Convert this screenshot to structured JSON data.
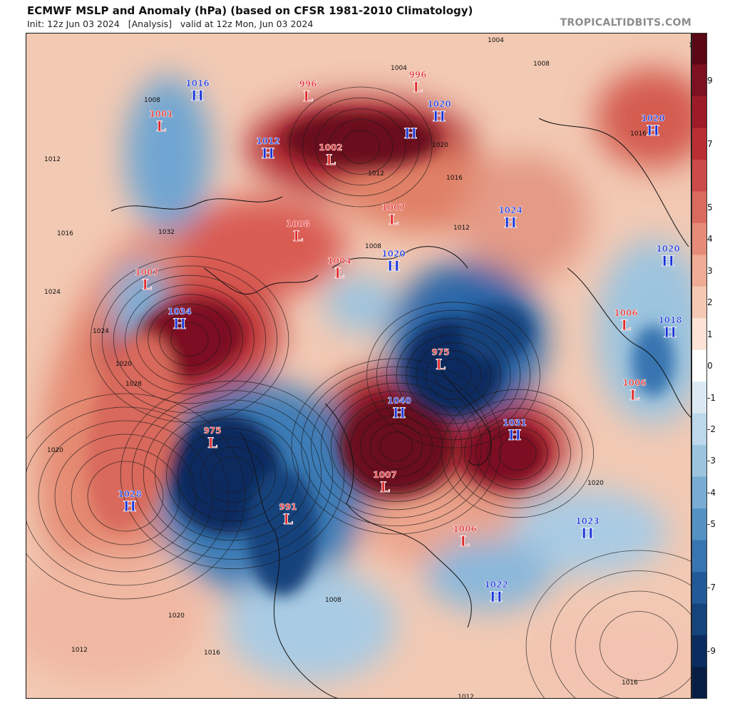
{
  "header": {
    "title": "ECMWF MSLP and Anomaly (hPa) (based on CFSR 1981-2010 Climatology)",
    "subtitle": "Init: 12z Jun 03 2024   [Analysis]   valid at 12z Mon, Jun 03 2024",
    "credit": "TROPICALTIDBITS.COM"
  },
  "colorbar": {
    "labels": [
      "9",
      "7",
      "5",
      "3",
      "1",
      "-1",
      "-3",
      "-5",
      "-7",
      "-9",
      "0",
      "2",
      "4",
      "-2",
      "-4"
    ],
    "ticks": [
      9,
      8,
      7,
      6,
      5,
      4,
      3,
      2,
      1,
      0,
      -1,
      -2,
      -3,
      -4,
      -5,
      -6,
      -7,
      -8,
      -9
    ],
    "tick_labels": [
      "9",
      "",
      "7",
      "",
      "5",
      "4",
      "3",
      "2",
      "1",
      "0",
      "-1",
      "-2",
      "-3",
      "-4",
      "-5",
      "",
      "-7",
      "",
      "-9"
    ],
    "colors": {
      "pos_max": "#6b0c1e",
      "pos_mid": "#d4474a",
      "pos_low": "#f6c6aa",
      "neutral": "#ffffff",
      "neg_low": "#bcd8ea",
      "neg_mid": "#4a8bc2",
      "neg_max": "#0b2c5e"
    }
  },
  "pressure_centers": [
    {
      "type": "H",
      "value": "1016"
    },
    {
      "type": "L",
      "value": "1001"
    },
    {
      "type": "H",
      "value": "1012"
    },
    {
      "type": "L",
      "value": "996"
    },
    {
      "type": "L",
      "value": "1002"
    },
    {
      "type": "L",
      "value": "996"
    },
    {
      "type": "H",
      "value": ""
    },
    {
      "type": "H",
      "value": "1020"
    },
    {
      "type": "L",
      "value": "1007"
    },
    {
      "type": "L",
      "value": "1008"
    },
    {
      "type": "L",
      "value": "1007"
    },
    {
      "type": "L",
      "value": "1004"
    },
    {
      "type": "H",
      "value": "1020"
    },
    {
      "type": "H",
      "value": "1024"
    },
    {
      "type": "H",
      "value": "1020"
    },
    {
      "type": "H",
      "value": "1034"
    },
    {
      "type": "L",
      "value": "975"
    },
    {
      "type": "L",
      "value": "1006"
    },
    {
      "type": "H",
      "value": "1018"
    },
    {
      "type": "L",
      "value": "1006"
    },
    {
      "type": "H",
      "value": "1040"
    },
    {
      "type": "H",
      "value": "1031"
    },
    {
      "type": "L",
      "value": "975"
    },
    {
      "type": "H",
      "value": "1028"
    },
    {
      "type": "L",
      "value": "991"
    },
    {
      "type": "L",
      "value": "1007"
    },
    {
      "type": "L",
      "value": "1006"
    },
    {
      "type": "H",
      "value": "1023"
    },
    {
      "type": "H",
      "value": "1022"
    },
    {
      "type": "H",
      "value": "1020"
    }
  ],
  "isobar_labels": [
    "1008",
    "1012",
    "1016",
    "1020",
    "1024",
    "1028",
    "1032",
    "1004",
    "1008",
    "1012",
    "1016",
    "1020",
    "1016",
    "1012",
    "1020",
    "1024",
    "1020",
    "1016",
    "1012",
    "1004",
    "1008",
    "1012",
    "1020",
    "1016",
    "1012",
    "1008"
  ]
}
